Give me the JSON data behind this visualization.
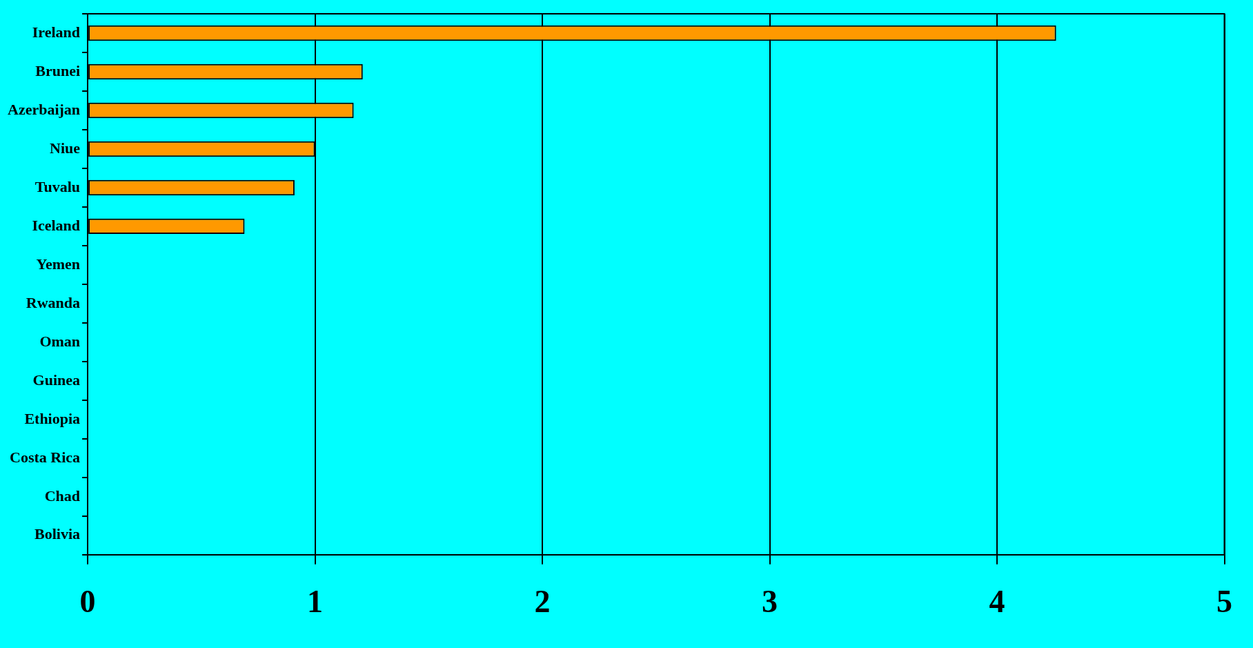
{
  "chart_data": {
    "type": "bar",
    "orientation": "horizontal",
    "categories": [
      "Ireland",
      "Brunei",
      "Azerbaijan",
      "Niue",
      "Tuvalu",
      "Iceland",
      "Yemen",
      "Rwanda",
      "Oman",
      "Guinea",
      "Ethiopia",
      "Costa Rica",
      "Chad",
      "Bolivia"
    ],
    "values": [
      4.26,
      1.21,
      1.17,
      1.0,
      0.91,
      0.69,
      0,
      0,
      0,
      0,
      0,
      0,
      0,
      0
    ],
    "color": "#ff9900",
    "xlim": [
      0,
      5
    ],
    "xticks": [
      0,
      1,
      2,
      3,
      4,
      5
    ],
    "grid": "x",
    "legend": false
  }
}
